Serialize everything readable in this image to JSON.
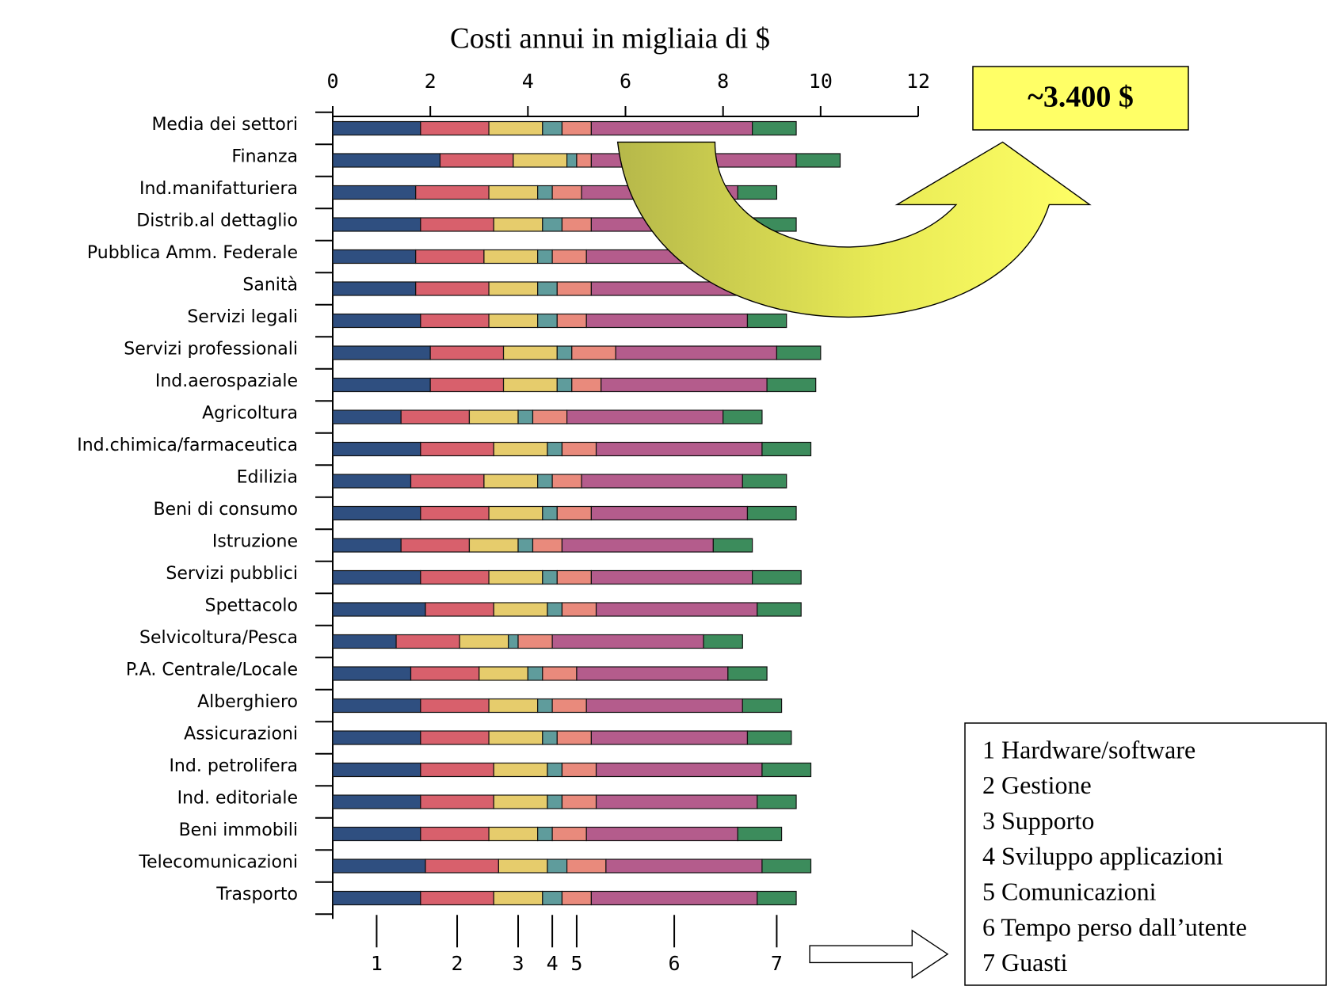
{
  "chart_data": {
    "type": "bar",
    "orientation": "horizontal",
    "stacked": true,
    "x_label": "Costi annui in migliaia di $",
    "annotation": "~3.400 $",
    "categories": [
      "Media dei settori",
      "Finanza",
      "Ind.manifatturiera",
      "Distrib.al dettaglio",
      "Pubblica Amm. Federale",
      "Sanità",
      "Servizi legali",
      "Servizi professionali",
      "Ind.aerospaziale",
      "Agricoltura",
      "Ind.chimica/farmaceutica",
      "Edilizia",
      "Beni di consumo",
      "Istruzione",
      "Servizi pubblici",
      "Spettacolo",
      "Selvicoltura/Pesca",
      "P.A. Centrale/Locale",
      "Alberghiero",
      "Assicurazioni",
      "Ind. petrolifera",
      "Ind. editoriale",
      "Beni immobili",
      "Telecomunicazioni",
      "Trasporto"
    ],
    "series": [
      {
        "name": "1 Hardware/software",
        "color": "#2f4f80",
        "values": [
          1.8,
          2.2,
          1.7,
          1.8,
          1.7,
          1.7,
          1.8,
          2.0,
          2.0,
          1.4,
          1.8,
          1.6,
          1.8,
          1.4,
          1.8,
          1.9,
          1.3,
          1.6,
          1.8,
          1.8,
          1.8,
          1.8,
          1.8,
          1.9,
          1.8
        ]
      },
      {
        "name": "2 Gestione",
        "color": "#d8606c",
        "values": [
          1.4,
          1.5,
          1.5,
          1.5,
          1.4,
          1.5,
          1.4,
          1.5,
          1.5,
          1.4,
          1.5,
          1.5,
          1.4,
          1.4,
          1.4,
          1.4,
          1.3,
          1.4,
          1.4,
          1.4,
          1.5,
          1.5,
          1.4,
          1.5,
          1.5
        ]
      },
      {
        "name": "3 Supporto",
        "color": "#e6cc6c",
        "values": [
          1.1,
          1.1,
          1.0,
          1.0,
          1.1,
          1.0,
          1.0,
          1.1,
          1.1,
          1.0,
          1.1,
          1.1,
          1.1,
          1.0,
          1.1,
          1.1,
          1.0,
          1.0,
          1.0,
          1.1,
          1.1,
          1.1,
          1.0,
          1.0,
          1.0
        ]
      },
      {
        "name": "4 Sviluppo applicazioni",
        "color": "#5f9c9c",
        "values": [
          0.4,
          0.2,
          0.3,
          0.4,
          0.3,
          0.4,
          0.4,
          0.3,
          0.3,
          0.3,
          0.3,
          0.3,
          0.3,
          0.3,
          0.3,
          0.3,
          0.2,
          0.3,
          0.3,
          0.3,
          0.3,
          0.3,
          0.3,
          0.4,
          0.4
        ]
      },
      {
        "name": "5 Comunicazioni",
        "color": "#e98a7c",
        "values": [
          0.6,
          0.3,
          0.6,
          0.6,
          0.7,
          0.7,
          0.6,
          0.9,
          0.6,
          0.7,
          0.7,
          0.6,
          0.7,
          0.6,
          0.7,
          0.7,
          0.7,
          0.7,
          0.7,
          0.7,
          0.7,
          0.7,
          0.7,
          0.8,
          0.6
        ]
      },
      {
        "name": "6 Tempo perso dall’utente",
        "color": "#b45c8c",
        "values": [
          3.3,
          4.2,
          3.2,
          3.3,
          3.2,
          3.2,
          3.3,
          3.3,
          3.4,
          3.2,
          3.4,
          3.3,
          3.2,
          3.1,
          3.3,
          3.3,
          3.1,
          3.1,
          3.2,
          3.2,
          3.4,
          3.3,
          3.1,
          3.2,
          3.4
        ]
      },
      {
        "name": "7 Guasti",
        "color": "#3c8c5c",
        "values": [
          0.9,
          0.9,
          0.8,
          0.9,
          0.8,
          0.8,
          0.8,
          0.9,
          1.0,
          0.8,
          1.0,
          0.9,
          1.0,
          0.8,
          1.0,
          0.9,
          0.8,
          0.8,
          0.8,
          0.9,
          1.0,
          0.8,
          0.9,
          1.0,
          0.8
        ]
      }
    ],
    "xlim": [
      0,
      12
    ],
    "xticks": [
      0,
      2,
      4,
      6,
      8,
      10,
      12
    ],
    "segment_numbers": [
      "1",
      "2",
      "3",
      "4",
      "5",
      "6",
      "7"
    ]
  }
}
